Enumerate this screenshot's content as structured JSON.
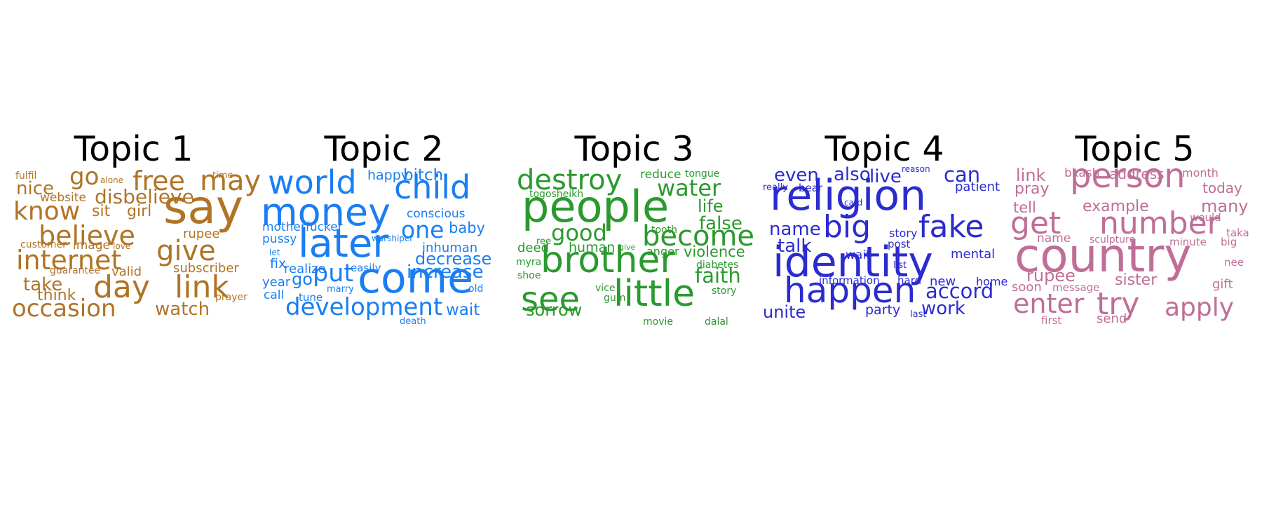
{
  "topics": [
    {
      "title": "Topic 1",
      "color": "#B07426",
      "words": [
        {
          "t": "fulfil",
          "s": 14
        },
        {
          "t": "go",
          "s": 34
        },
        {
          "t": "alone",
          "s": 12
        },
        {
          "t": "free",
          "s": 38
        },
        {
          "t": "time",
          "s": 13
        },
        {
          "t": "may",
          "s": 40
        },
        {
          "t": "nice",
          "s": 26
        },
        {
          "t": "website",
          "s": 17
        },
        {
          "t": "disbelieve",
          "s": 28
        },
        {
          "t": "know",
          "s": 36
        },
        {
          "t": "sit",
          "s": 22
        },
        {
          "t": "girl",
          "s": 22
        },
        {
          "t": "say",
          "s": 66
        },
        {
          "t": "believe",
          "s": 38
        },
        {
          "t": "rupee",
          "s": 18
        },
        {
          "t": "customer",
          "s": 14
        },
        {
          "t": "image",
          "s": 17
        },
        {
          "t": "love",
          "s": 12
        },
        {
          "t": "give",
          "s": 40
        },
        {
          "t": "internet",
          "s": 38
        },
        {
          "t": "guarantee",
          "s": 14
        },
        {
          "t": "valid",
          "s": 18
        },
        {
          "t": "subscriber",
          "s": 18
        },
        {
          "t": "take",
          "s": 26
        },
        {
          "t": "think",
          "s": 22
        },
        {
          "t": "day",
          "s": 44
        },
        {
          "t": "link",
          "s": 44
        },
        {
          "t": "prayer",
          "s": 14
        },
        {
          "t": "occasion",
          "s": 34
        },
        {
          "t": "watch",
          "s": 26
        }
      ]
    },
    {
      "title": "Topic 2",
      "color": "#1A7EF2",
      "words": [
        {
          "t": "world",
          "s": 46
        },
        {
          "t": "happy",
          "s": 19
        },
        {
          "t": "bitch",
          "s": 23
        },
        {
          "t": "child",
          "s": 46
        },
        {
          "t": "money",
          "s": 54
        },
        {
          "t": "conscious",
          "s": 17
        },
        {
          "t": "one",
          "s": 33
        },
        {
          "t": "baby",
          "s": 21
        },
        {
          "t": "motherfucker",
          "s": 17
        },
        {
          "t": "pussy",
          "s": 17
        },
        {
          "t": "later",
          "s": 56
        },
        {
          "t": "worshiper",
          "s": 12
        },
        {
          "t": "let",
          "s": 12
        },
        {
          "t": "inhuman",
          "s": 18
        },
        {
          "t": "decrease",
          "s": 24
        },
        {
          "t": "fix",
          "s": 19
        },
        {
          "t": "realize",
          "s": 18
        },
        {
          "t": "easily",
          "s": 15
        },
        {
          "t": "increase",
          "s": 26
        },
        {
          "t": "year",
          "s": 18
        },
        {
          "t": "go",
          "s": 24
        },
        {
          "t": "put",
          "s": 35
        },
        {
          "t": "come",
          "s": 60
        },
        {
          "t": "marry",
          "s": 13
        },
        {
          "t": "old",
          "s": 14
        },
        {
          "t": "call",
          "s": 17
        },
        {
          "t": "tune",
          "s": 15
        },
        {
          "t": "development",
          "s": 34
        },
        {
          "t": "wait",
          "s": 23
        },
        {
          "t": "death",
          "s": 13
        }
      ]
    },
    {
      "title": "Topic 3",
      "color": "#2A9A2E",
      "words": [
        {
          "t": "destroy",
          "s": 40
        },
        {
          "t": "reduce",
          "s": 17
        },
        {
          "t": "tongue",
          "s": 14
        },
        {
          "t": "togosheikh",
          "s": 14
        },
        {
          "t": "water",
          "s": 32
        },
        {
          "t": "people",
          "s": 62
        },
        {
          "t": "life",
          "s": 24
        },
        {
          "t": "false",
          "s": 26
        },
        {
          "t": "good",
          "s": 32
        },
        {
          "t": "tooth",
          "s": 14
        },
        {
          "t": "become",
          "s": 40
        },
        {
          "t": "ree",
          "s": 13
        },
        {
          "t": "deed",
          "s": 18
        },
        {
          "t": "human",
          "s": 19
        },
        {
          "t": "give",
          "s": 11
        },
        {
          "t": "anger",
          "s": 16
        },
        {
          "t": "violence",
          "s": 21
        },
        {
          "t": "myra",
          "s": 14
        },
        {
          "t": "brother",
          "s": 52
        },
        {
          "t": "diabetes",
          "s": 14
        },
        {
          "t": "shoe",
          "s": 14
        },
        {
          "t": "faith",
          "s": 29
        },
        {
          "t": "see",
          "s": 48
        },
        {
          "t": "vice",
          "s": 14
        },
        {
          "t": "little",
          "s": 52
        },
        {
          "t": "story",
          "s": 14
        },
        {
          "t": "gum",
          "s": 14
        },
        {
          "t": "sorrow",
          "s": 24
        },
        {
          "t": "movie",
          "s": 14
        },
        {
          "t": "dalal",
          "s": 14
        }
      ]
    },
    {
      "title": "Topic 4",
      "color": "#2B2BD0",
      "words": [
        {
          "t": "even",
          "s": 26
        },
        {
          "t": "also",
          "s": 26
        },
        {
          "t": "reason",
          "s": 12
        },
        {
          "t": "live",
          "s": 26
        },
        {
          "t": "can",
          "s": 29
        },
        {
          "t": "really",
          "s": 13
        },
        {
          "t": "bear",
          "s": 15
        },
        {
          "t": "patient",
          "s": 18
        },
        {
          "t": "religion",
          "s": 60
        },
        {
          "t": "card",
          "s": 12
        },
        {
          "t": "name",
          "s": 26
        },
        {
          "t": "big",
          "s": 44
        },
        {
          "t": "fake",
          "s": 44
        },
        {
          "t": "talk",
          "s": 26
        },
        {
          "t": "story",
          "s": 16
        },
        {
          "t": "post",
          "s": 15
        },
        {
          "t": "wait",
          "s": 17
        },
        {
          "t": "mental",
          "s": 18
        },
        {
          "t": "identity",
          "s": 60
        },
        {
          "t": "list",
          "s": 13
        },
        {
          "t": "information",
          "s": 15
        },
        {
          "t": "hard",
          "s": 15
        },
        {
          "t": "new",
          "s": 18
        },
        {
          "t": "home",
          "s": 16
        },
        {
          "t": "happen",
          "s": 50
        },
        {
          "t": "accord",
          "s": 29
        },
        {
          "t": "work",
          "s": 26
        },
        {
          "t": "unite",
          "s": 24
        },
        {
          "t": "party",
          "s": 19
        },
        {
          "t": "last",
          "s": 13
        }
      ]
    },
    {
      "title": "Topic 5",
      "color": "#C06E97",
      "words": [
        {
          "t": "link",
          "s": 24
        },
        {
          "t": "bkash",
          "s": 17
        },
        {
          "t": "address",
          "s": 20
        },
        {
          "t": "month",
          "s": 16
        },
        {
          "t": "pray",
          "s": 22
        },
        {
          "t": "person",
          "s": 48
        },
        {
          "t": "today",
          "s": 20
        },
        {
          "t": "tell",
          "s": 21
        },
        {
          "t": "example",
          "s": 22
        },
        {
          "t": "many",
          "s": 24
        },
        {
          "t": "would",
          "s": 15
        },
        {
          "t": "get",
          "s": 44
        },
        {
          "t": "number",
          "s": 44
        },
        {
          "t": "taka",
          "s": 15
        },
        {
          "t": "name",
          "s": 17
        },
        {
          "t": "sculpture",
          "s": 14
        },
        {
          "t": "minute",
          "s": 15
        },
        {
          "t": "big",
          "s": 15
        },
        {
          "t": "country",
          "s": 66
        },
        {
          "t": "nee",
          "s": 15
        },
        {
          "t": "rupee",
          "s": 24
        },
        {
          "t": "soon",
          "s": 18
        },
        {
          "t": "message",
          "s": 15
        },
        {
          "t": "sister",
          "s": 22
        },
        {
          "t": "gift",
          "s": 18
        },
        {
          "t": "enter",
          "s": 38
        },
        {
          "t": "try",
          "s": 44
        },
        {
          "t": "apply",
          "s": 36
        },
        {
          "t": "first",
          "s": 15
        },
        {
          "t": "send",
          "s": 18
        }
      ]
    }
  ]
}
